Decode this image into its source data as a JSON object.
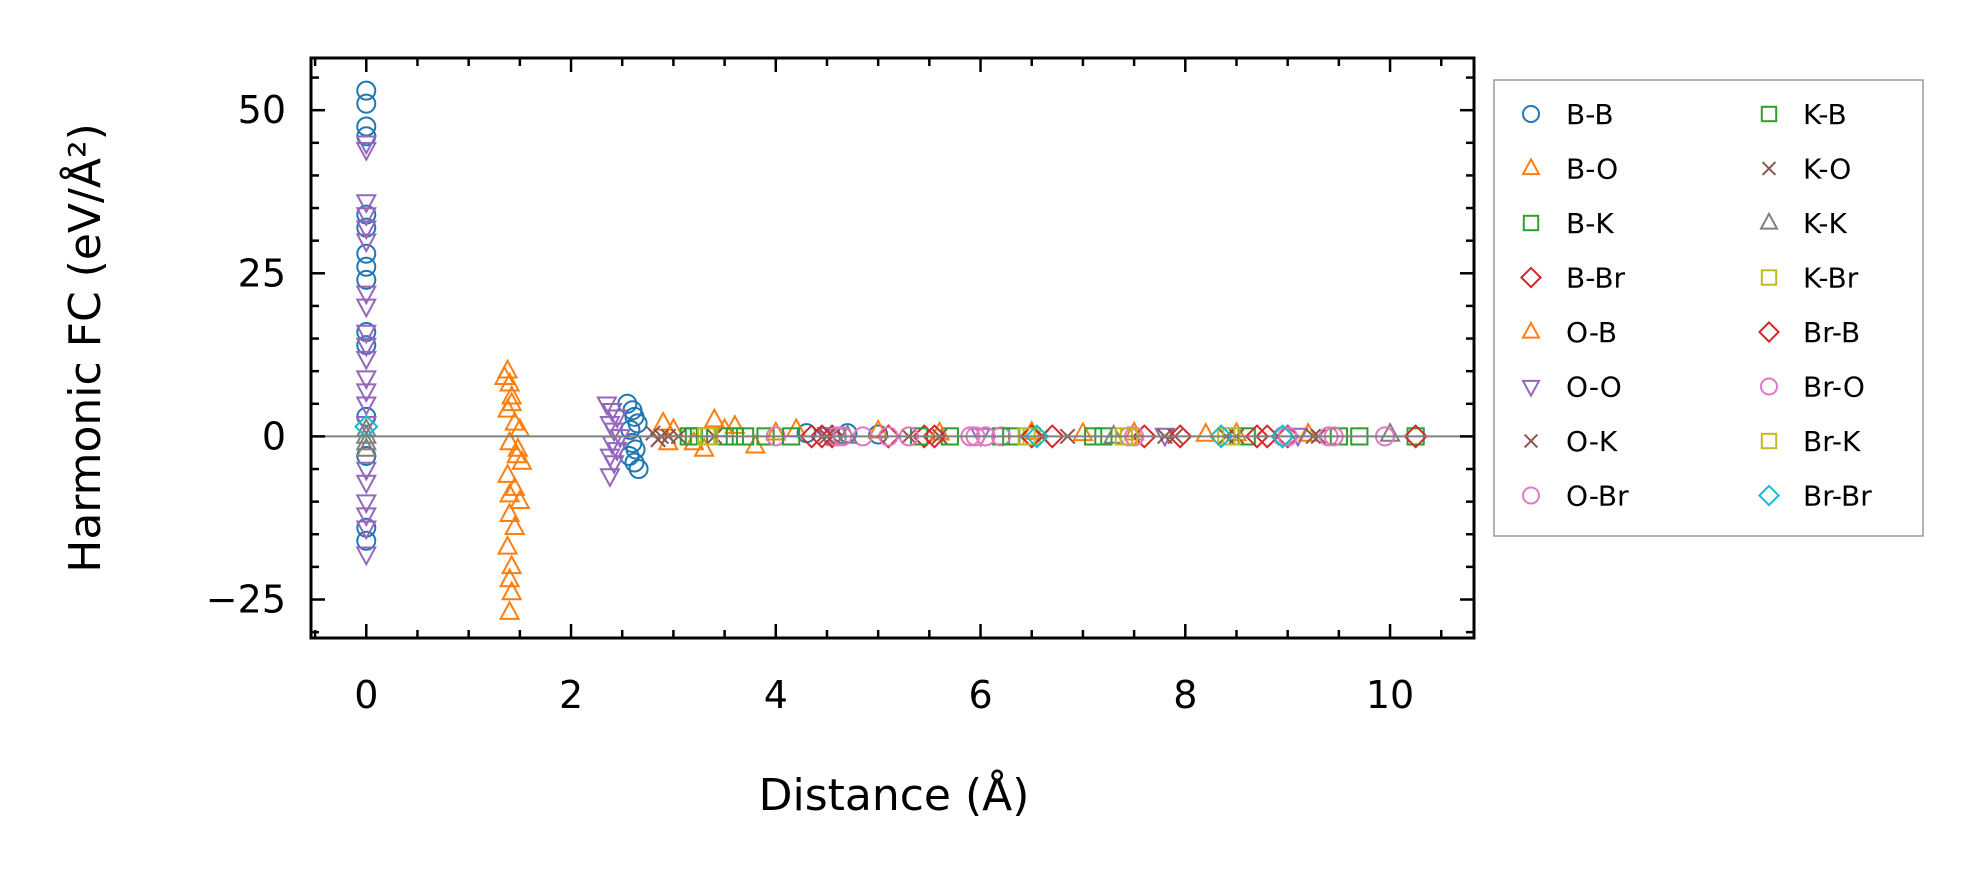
{
  "chart_data": {
    "type": "scatter",
    "title": "",
    "xlabel": "Distance (Å)",
    "ylabel": "Harmonic FC (eV/Å²)",
    "xlim": [
      -0.54,
      10.82
    ],
    "ylim": [
      -30.9,
      58
    ],
    "xticks": [
      0,
      2,
      4,
      6,
      8,
      10
    ],
    "xtick_labels": [
      "0",
      "2",
      "4",
      "6",
      "8",
      "10"
    ],
    "yticks": [
      -25,
      0,
      25,
      50
    ],
    "ytick_labels": [
      "−25",
      "0",
      "25",
      "50"
    ],
    "reference_line_y": 0,
    "grid": false,
    "legend_placement": "outside-right",
    "series": [
      {
        "name": "B-B",
        "marker": "circle",
        "color": "#1f77b4",
        "points": [
          [
            0,
            53
          ],
          [
            0,
            51
          ],
          [
            0,
            47.5
          ],
          [
            0,
            46
          ],
          [
            0,
            34
          ],
          [
            0,
            32
          ],
          [
            0,
            28
          ],
          [
            0,
            26
          ],
          [
            0,
            24
          ],
          [
            0,
            16
          ],
          [
            0,
            14
          ],
          [
            0,
            3
          ],
          [
            0,
            -3
          ],
          [
            0,
            -14
          ],
          [
            0,
            -16
          ],
          [
            2.55,
            5
          ],
          [
            2.6,
            4
          ],
          [
            2.62,
            3
          ],
          [
            2.65,
            2
          ],
          [
            2.58,
            1
          ],
          [
            2.6,
            -1
          ],
          [
            2.63,
            -2
          ],
          [
            2.57,
            -3
          ],
          [
            2.62,
            -4
          ],
          [
            2.66,
            -5
          ],
          [
            4.3,
            0.5
          ],
          [
            4.7,
            0.5
          ],
          [
            5.0,
            0.3
          ]
        ]
      },
      {
        "name": "B-O",
        "marker": "triangle-up",
        "color": "#ff7f0e",
        "points": [
          [
            1.38,
            10
          ],
          [
            1.4,
            8
          ],
          [
            1.42,
            6
          ],
          [
            1.38,
            4
          ],
          [
            1.45,
            2
          ],
          [
            1.5,
            1
          ],
          [
            1.4,
            -1
          ],
          [
            1.47,
            -3
          ],
          [
            1.52,
            -4
          ],
          [
            1.38,
            -6
          ],
          [
            1.45,
            -8
          ],
          [
            1.5,
            -10
          ],
          [
            1.4,
            -12
          ],
          [
            1.45,
            -14
          ],
          [
            1.38,
            -17
          ],
          [
            1.42,
            -20
          ],
          [
            1.4,
            -22
          ],
          [
            1.42,
            -24
          ],
          [
            1.4,
            -27
          ],
          [
            2.9,
            2
          ],
          [
            3.0,
            1
          ],
          [
            3.2,
            -1
          ],
          [
            3.4,
            2.5
          ],
          [
            3.6,
            1.5
          ],
          [
            3.8,
            -1.5
          ],
          [
            4.2,
            1
          ],
          [
            5.0,
            0.8
          ],
          [
            6.5,
            0.6
          ],
          [
            7.5,
            0.5
          ],
          [
            8.5,
            0.4
          ]
        ]
      },
      {
        "name": "B-K",
        "marker": "square",
        "color": "#2ca02c",
        "points": [
          [
            3.15,
            0
          ],
          [
            3.25,
            0
          ],
          [
            3.5,
            0
          ],
          [
            3.7,
            0
          ],
          [
            3.9,
            0
          ],
          [
            4.6,
            0
          ],
          [
            5.7,
            0
          ],
          [
            6.2,
            0
          ],
          [
            7.2,
            0
          ],
          [
            8.6,
            0
          ]
        ]
      },
      {
        "name": "B-Br",
        "marker": "diamond",
        "color": "#d62728",
        "points": [
          [
            4.35,
            0
          ],
          [
            4.55,
            0
          ],
          [
            5.1,
            0
          ],
          [
            5.45,
            0
          ],
          [
            6.7,
            0
          ],
          [
            7.6,
            0
          ],
          [
            8.7,
            0
          ],
          [
            9.0,
            0
          ]
        ]
      },
      {
        "name": "O-B",
        "marker": "triangle-up",
        "color": "#ff7f0e",
        "points": [
          [
            1.35,
            9
          ],
          [
            1.42,
            5
          ],
          [
            1.48,
            -2
          ],
          [
            1.4,
            -9
          ],
          [
            2.95,
            -1
          ],
          [
            3.3,
            -2
          ],
          [
            3.5,
            1
          ],
          [
            4.0,
            0.5
          ],
          [
            5.6,
            0.5
          ],
          [
            7.0,
            0.4
          ],
          [
            8.2,
            0.3
          ],
          [
            9.2,
            0.3
          ]
        ]
      },
      {
        "name": "O-O",
        "marker": "triangle-down",
        "color": "#9467bd",
        "points": [
          [
            0,
            45
          ],
          [
            0,
            44
          ],
          [
            0,
            36
          ],
          [
            0,
            34
          ],
          [
            0,
            32
          ],
          [
            0,
            30
          ],
          [
            0,
            22
          ],
          [
            0,
            20
          ],
          [
            0,
            16
          ],
          [
            0,
            14
          ],
          [
            0,
            12
          ],
          [
            0,
            9
          ],
          [
            0,
            7
          ],
          [
            0,
            5
          ],
          [
            0,
            2
          ],
          [
            0,
            -5
          ],
          [
            0,
            -7
          ],
          [
            0,
            -10
          ],
          [
            0,
            -12
          ],
          [
            0,
            -14
          ],
          [
            0,
            -18
          ],
          [
            2.35,
            5
          ],
          [
            2.4,
            4
          ],
          [
            2.45,
            3
          ],
          [
            2.38,
            2
          ],
          [
            2.42,
            1
          ],
          [
            2.48,
            0
          ],
          [
            2.4,
            -1
          ],
          [
            2.45,
            -2
          ],
          [
            2.38,
            -3
          ],
          [
            2.42,
            -4
          ],
          [
            2.38,
            -6
          ],
          [
            4.5,
            0.3
          ],
          [
            6.0,
            0.2
          ],
          [
            7.8,
            0.2
          ],
          [
            9.1,
            0.2
          ]
        ]
      },
      {
        "name": "O-K",
        "marker": "x",
        "color": "#8c564b",
        "points": [
          [
            2.8,
            0.5
          ],
          [
            2.85,
            -0.5
          ],
          [
            2.95,
            0
          ],
          [
            3.4,
            0
          ],
          [
            4.55,
            0
          ],
          [
            5.6,
            0
          ],
          [
            6.6,
            0
          ],
          [
            7.8,
            0
          ],
          [
            8.4,
            0
          ],
          [
            9.3,
            0
          ]
        ]
      },
      {
        "name": "O-Br",
        "marker": "circle",
        "color": "#e377c2",
        "points": [
          [
            4.0,
            0
          ],
          [
            4.6,
            0
          ],
          [
            4.85,
            0
          ],
          [
            5.1,
            0
          ],
          [
            5.9,
            0
          ],
          [
            6.05,
            0
          ],
          [
            6.2,
            0
          ],
          [
            7.5,
            0
          ],
          [
            8.95,
            0
          ],
          [
            9.4,
            0
          ]
        ]
      },
      {
        "name": "K-B",
        "marker": "square",
        "color": "#2ca02c",
        "points": [
          [
            3.2,
            0
          ],
          [
            3.6,
            0
          ],
          [
            4.15,
            0
          ],
          [
            5.4,
            0
          ],
          [
            6.3,
            0
          ],
          [
            7.1,
            0
          ],
          [
            9.5,
            0
          ],
          [
            9.7,
            0
          ],
          [
            10.25,
            0
          ]
        ]
      },
      {
        "name": "K-O",
        "marker": "x",
        "color": "#8c564b",
        "points": [
          [
            2.88,
            0
          ],
          [
            3.05,
            0
          ],
          [
            4.5,
            0
          ],
          [
            5.3,
            0
          ],
          [
            6.85,
            0
          ],
          [
            7.9,
            0
          ],
          [
            8.5,
            0
          ],
          [
            9.25,
            0
          ]
        ]
      },
      {
        "name": "K-K",
        "marker": "triangle-up",
        "color": "#7f7f7f",
        "points": [
          [
            0,
            1
          ],
          [
            0,
            0
          ],
          [
            0,
            -1
          ],
          [
            0,
            -2
          ],
          [
            4.7,
            0
          ],
          [
            7.3,
            0
          ],
          [
            10.0,
            0.3
          ]
        ]
      },
      {
        "name": "K-Br",
        "marker": "square",
        "color": "#bcbd22",
        "points": [
          [
            3.32,
            0
          ],
          [
            6.5,
            0
          ],
          [
            7.4,
            0
          ],
          [
            8.45,
            0
          ]
        ]
      },
      {
        "name": "Br-B",
        "marker": "diamond",
        "color": "#d62728",
        "points": [
          [
            4.45,
            0
          ],
          [
            5.55,
            0
          ],
          [
            6.5,
            0
          ],
          [
            7.95,
            0
          ],
          [
            8.8,
            0
          ],
          [
            10.25,
            0
          ]
        ]
      },
      {
        "name": "Br-O",
        "marker": "circle",
        "color": "#e377c2",
        "points": [
          [
            4.65,
            0
          ],
          [
            5.3,
            0
          ],
          [
            5.95,
            0
          ],
          [
            7.45,
            0
          ],
          [
            9.0,
            0
          ],
          [
            9.45,
            0
          ],
          [
            9.95,
            0
          ]
        ]
      },
      {
        "name": "Br-K",
        "marker": "square",
        "color": "#bcbd22",
        "points": [
          [
            3.35,
            0
          ],
          [
            6.45,
            0
          ],
          [
            7.45,
            0
          ],
          [
            8.4,
            0
          ]
        ]
      },
      {
        "name": "Br-Br",
        "marker": "diamond",
        "color": "#17becf",
        "points": [
          [
            0,
            1.5
          ],
          [
            6.55,
            0
          ],
          [
            8.35,
            0
          ],
          [
            8.95,
            0
          ]
        ]
      }
    ]
  }
}
